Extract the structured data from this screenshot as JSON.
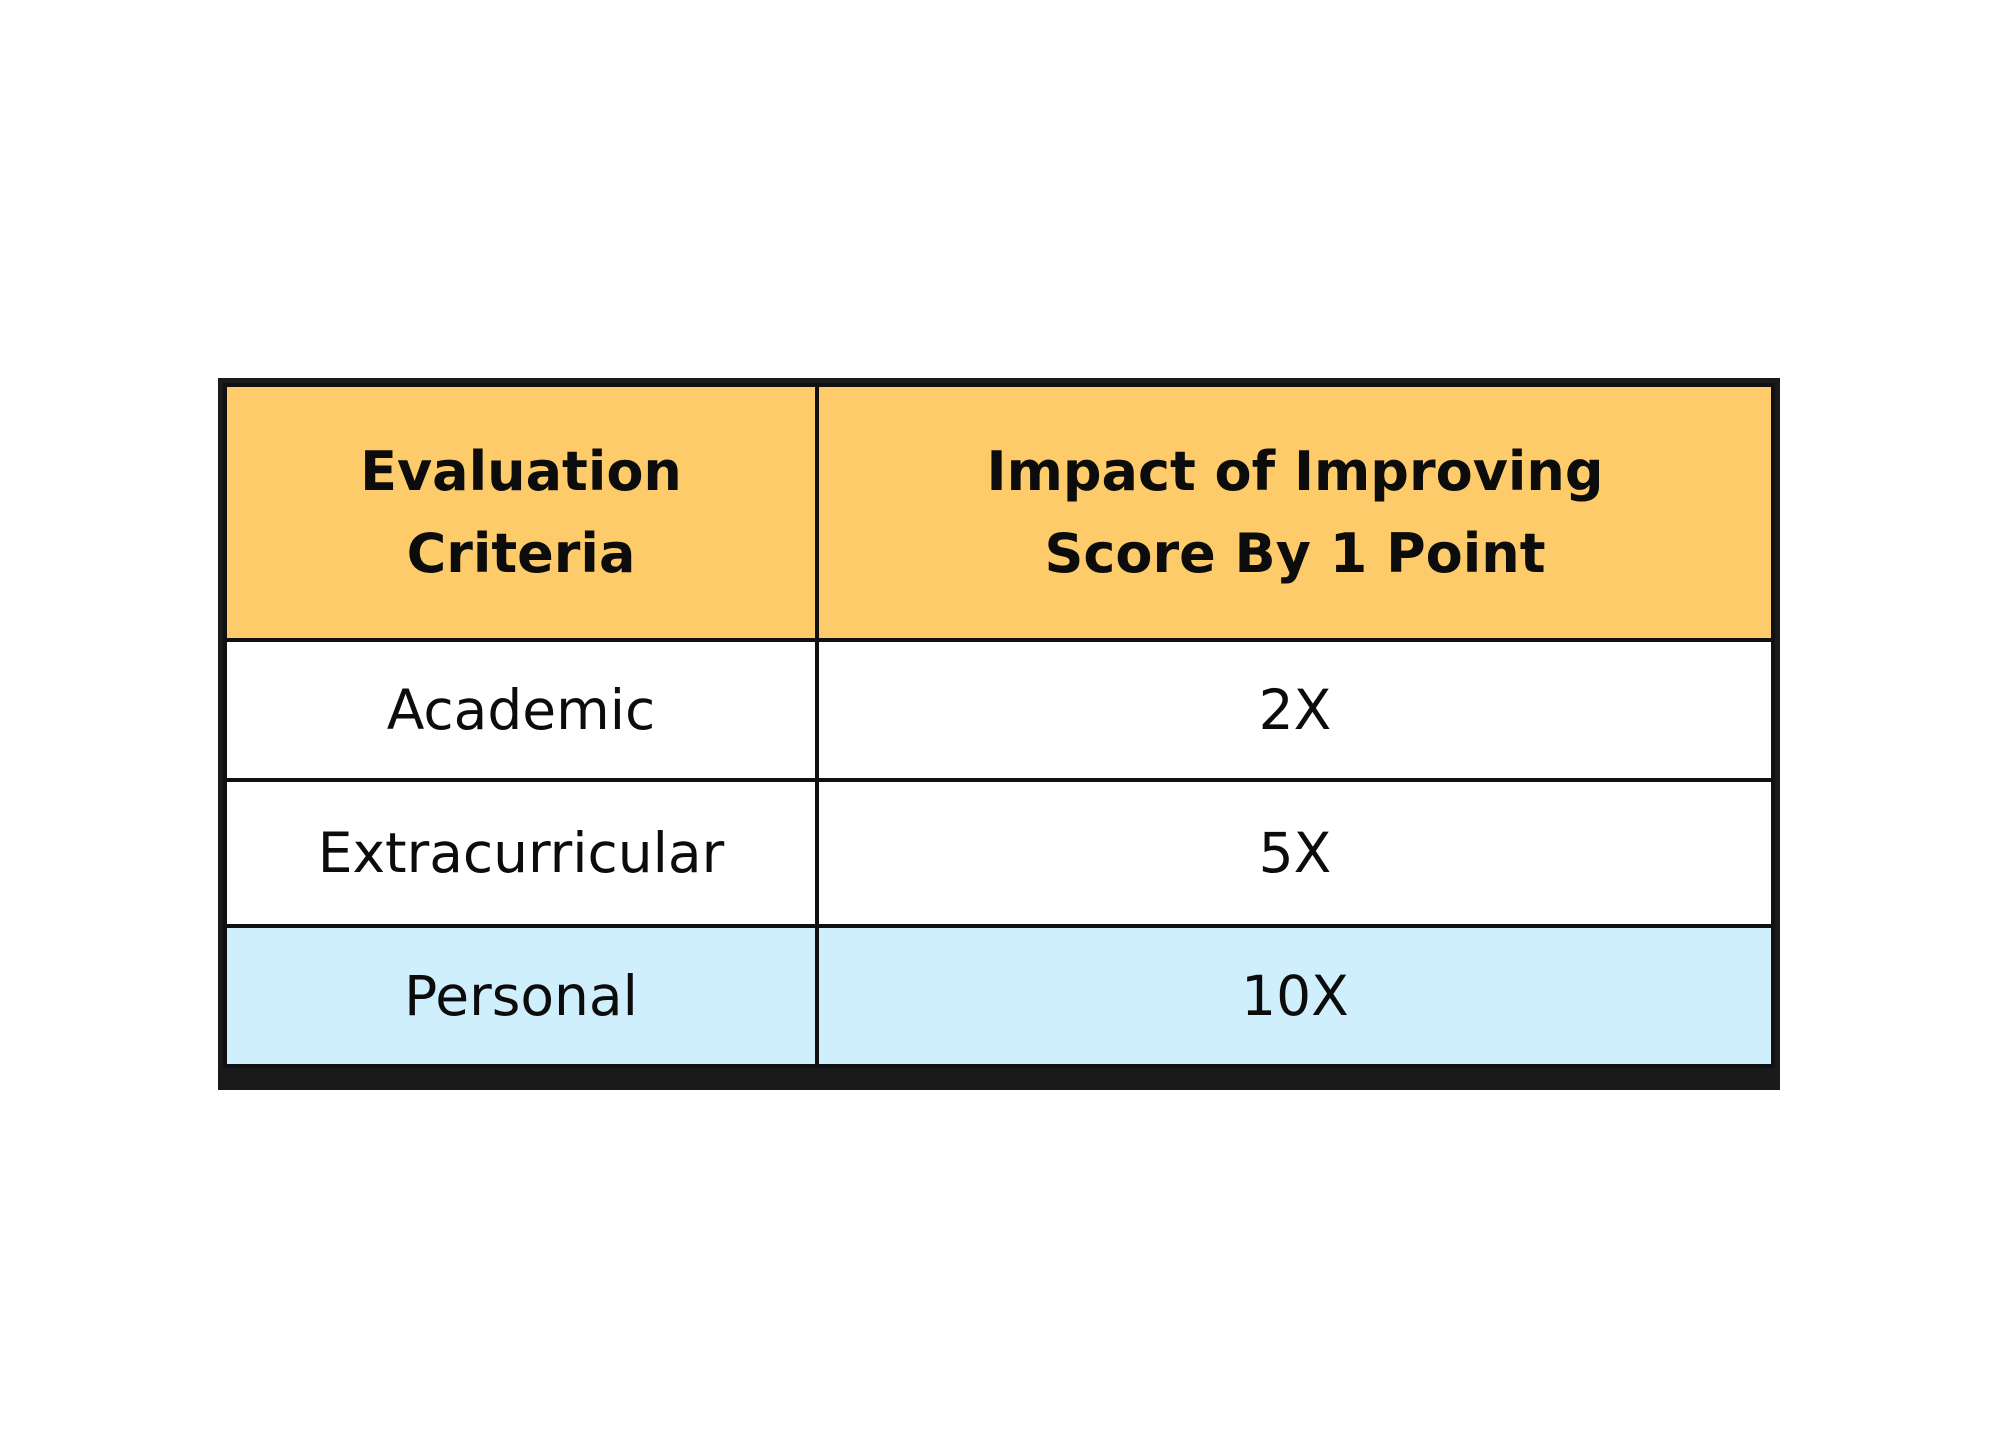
{
  "table": {
    "headers": [
      "Evaluation\nCriteria",
      "Impact of Improving\nScore By 1 Point"
    ],
    "rows": [
      [
        "Academic",
        "2X"
      ],
      [
        "Extracurricular",
        "5X"
      ],
      [
        "Personal",
        "10X"
      ]
    ]
  },
  "colors": {
    "header_background": "#fdcb69",
    "highlight_row_background": "#d0effc",
    "border": "#111111",
    "shadow": "#1a1a1a"
  }
}
